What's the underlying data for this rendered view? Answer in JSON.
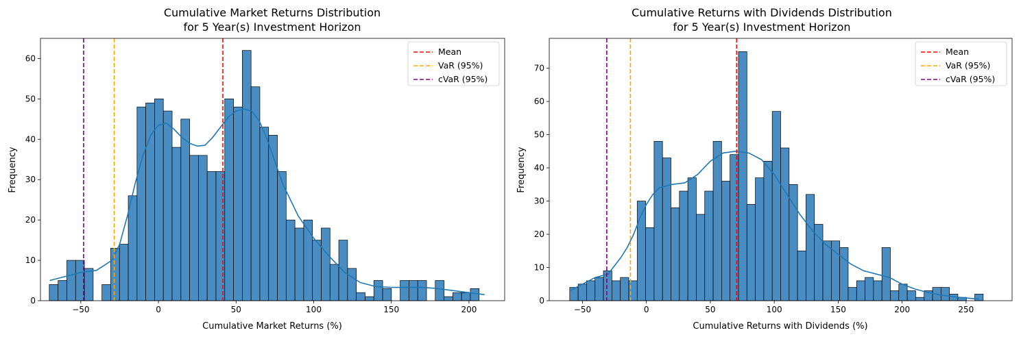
{
  "chart_data": [
    {
      "type": "histogram",
      "title": "Cumulative Market Returns Distribution\nfor 5 Year(s) Investment Horizon",
      "title_lines": [
        "Cumulative Market Returns Distribution",
        "for 5 Year(s) Investment Horizon"
      ],
      "xlabel": "Cumulative Market Returns (%)",
      "ylabel": "Frequency",
      "xlim": [
        -76,
        223
      ],
      "ylim": [
        0,
        65
      ],
      "xticks": [
        -50,
        0,
        50,
        100,
        150,
        200
      ],
      "yticks": [
        0,
        10,
        20,
        30,
        40,
        50,
        60
      ],
      "bins": {
        "start": -70.3,
        "width": 5.65,
        "counts": [
          4,
          5,
          10,
          10,
          8,
          0,
          4,
          13,
          14,
          26,
          48,
          49,
          50,
          47,
          38,
          45,
          36,
          36,
          32,
          32,
          50,
          48,
          62,
          53,
          43,
          41,
          32,
          20,
          18,
          20,
          15,
          18,
          9,
          15,
          8,
          2,
          1,
          5,
          3,
          0,
          5,
          5,
          5,
          0,
          5,
          1,
          2,
          2,
          3
        ]
      },
      "kde": {
        "x": [
          -70,
          -60,
          -50,
          -40,
          -30,
          -25,
          -20,
          -15,
          -10,
          -5,
          0,
          5,
          10,
          15,
          20,
          25,
          30,
          35,
          40,
          45,
          50,
          55,
          60,
          65,
          70,
          75,
          80,
          90,
          100,
          110,
          120,
          130,
          140,
          150,
          160,
          170,
          180,
          190,
          200,
          210
        ],
        "y": [
          5,
          6,
          7,
          7.5,
          10,
          14,
          21,
          29,
          36,
          41,
          43.5,
          44,
          42.5,
          40.5,
          39,
          38.3,
          38.5,
          40.5,
          43,
          45.5,
          47,
          47.5,
          47,
          44.5,
          40,
          34.5,
          29,
          21,
          15.5,
          11,
          7,
          4.5,
          3.5,
          3.3,
          3.3,
          3.3,
          3,
          2.5,
          2,
          1.5
        ]
      },
      "lines": [
        {
          "label": "Mean",
          "x": 41.5,
          "color": "#ff0000"
        },
        {
          "label": "VaR (95%)",
          "x": -28.5,
          "color": "#ffa500"
        },
        {
          "label": "cVaR (95%)",
          "x": -48.2,
          "color": "#800080"
        }
      ],
      "bar_color": "#3f87c0",
      "kde_color": "#1f77b4",
      "legend_position": "upper right"
    },
    {
      "type": "histogram",
      "title": "Cumulative Returns with Dividends Distribution\nfor 5 Year(s) Investment Horizon",
      "title_lines": [
        "Cumulative Returns with Dividends Distribution",
        "for 5 Year(s) Investment Horizon"
      ],
      "xlabel": "Cumulative Returns with Dividends (%)",
      "ylabel": "Frequency",
      "xlim": [
        -76,
        286
      ],
      "ylim": [
        0,
        79
      ],
      "xticks": [
        -50,
        0,
        50,
        100,
        150,
        200,
        250
      ],
      "yticks": [
        0,
        10,
        20,
        30,
        40,
        50,
        60,
        70
      ],
      "bins": {
        "start": -60.0,
        "width": 6.6,
        "counts": [
          4,
          5,
          6,
          7,
          9,
          6,
          7,
          6,
          30,
          22,
          48,
          43,
          28,
          33,
          37,
          26,
          33,
          48,
          36,
          44,
          75,
          29,
          37,
          42,
          57,
          46,
          35,
          15,
          32,
          23,
          18,
          18,
          16,
          4,
          6,
          7,
          6,
          16,
          3,
          5,
          3,
          1,
          3,
          4,
          4,
          2,
          1,
          0,
          2
        ]
      },
      "kde": {
        "x": [
          -60,
          -50,
          -40,
          -30,
          -20,
          -15,
          -10,
          -5,
          0,
          5,
          10,
          20,
          30,
          40,
          50,
          60,
          70,
          80,
          90,
          100,
          110,
          120,
          130,
          140,
          150,
          160,
          170,
          180,
          190,
          200,
          210,
          220,
          230,
          240,
          250,
          260
        ],
        "y": [
          3,
          5,
          7,
          8,
          13,
          16,
          20,
          25,
          29,
          32,
          34,
          35,
          35.5,
          38,
          42,
          44.5,
          45,
          44.5,
          42.5,
          38,
          32,
          26,
          21,
          17,
          14,
          11,
          9,
          8,
          7,
          5,
          3.5,
          2.5,
          1.7,
          1.2,
          0.8,
          0.5
        ]
      },
      "lines": [
        {
          "label": "Mean",
          "x": 70.6,
          "color": "#ff0000"
        },
        {
          "label": "VaR (95%)",
          "x": -12.5,
          "color": "#ffa500"
        },
        {
          "label": "cVaR (95%)",
          "x": -31.0,
          "color": "#800080"
        }
      ],
      "bar_color": "#3f87c0",
      "kde_color": "#1f77b4",
      "legend_position": "upper right"
    }
  ]
}
